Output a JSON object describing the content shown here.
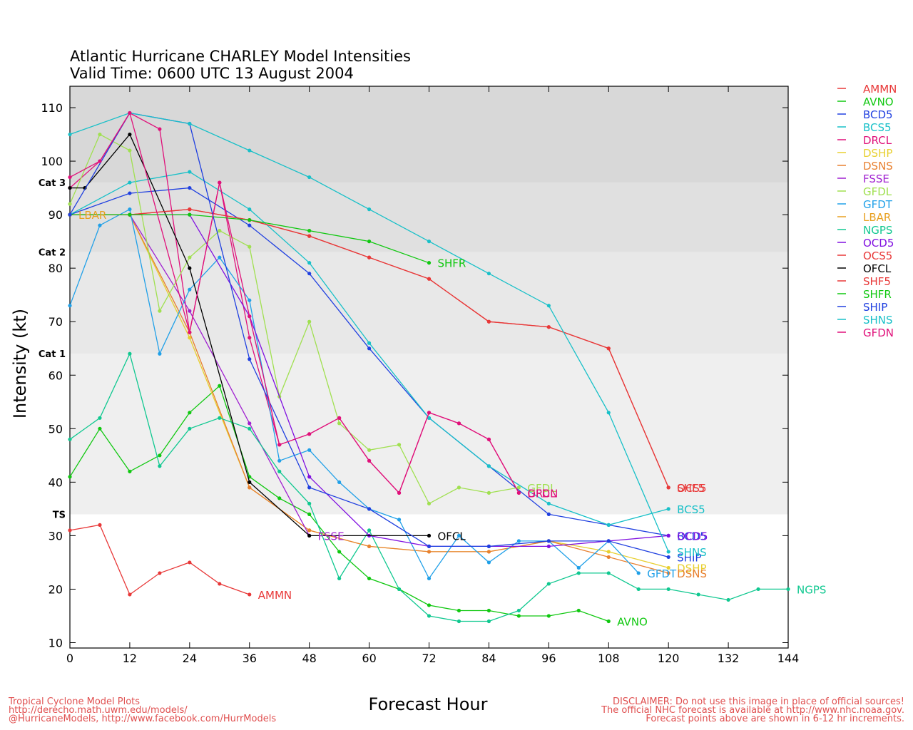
{
  "chart_data": {
    "type": "line",
    "title": "Atlantic Hurricane CHARLEY Model Intensities",
    "subtitle": "Valid Time: 0600 UTC 13 August 2004",
    "xlabel": "Forecast Hour",
    "ylabel": "Intensity (kt)",
    "xlim": [
      0,
      144
    ],
    "ylim": [
      9,
      114
    ],
    "xticks": [
      0,
      12,
      24,
      36,
      48,
      60,
      72,
      84,
      96,
      108,
      120,
      132,
      144
    ],
    "yticks": [
      10,
      20,
      30,
      40,
      50,
      60,
      70,
      80,
      90,
      100,
      110
    ],
    "category_bands": [
      {
        "name": "TS",
        "from": 34,
        "to": 64,
        "color": "#efefef"
      },
      {
        "name": "Cat 1",
        "from": 64,
        "to": 83,
        "color": "#e8e8e8"
      },
      {
        "name": "Cat 2",
        "from": 83,
        "to": 96,
        "color": "#e0e0e0"
      },
      {
        "name": "Cat 3",
        "from": 96,
        "to": 114,
        "color": "#d8d8d8"
      }
    ],
    "category_labels": [
      {
        "text": "Cat 3",
        "y": 96
      },
      {
        "text": "Cat 2",
        "y": 83
      },
      {
        "text": "Cat 1",
        "y": 64
      },
      {
        "text": "TS",
        "y": 34
      }
    ],
    "legend_position": "right",
    "series": [
      {
        "name": "AMMN",
        "color": "#e83838",
        "label": "AMMN",
        "points": [
          [
            0,
            31
          ],
          [
            6,
            32
          ],
          [
            12,
            19
          ],
          [
            18,
            23
          ],
          [
            24,
            25
          ],
          [
            30,
            21
          ],
          [
            36,
            19
          ]
        ]
      },
      {
        "name": "AVNO",
        "color": "#10c810",
        "label": "AVNO",
        "points": [
          [
            0,
            41
          ],
          [
            6,
            50
          ],
          [
            12,
            42
          ],
          [
            18,
            45
          ],
          [
            24,
            53
          ],
          [
            30,
            58
          ],
          [
            36,
            41
          ],
          [
            42,
            37
          ],
          [
            48,
            34
          ],
          [
            54,
            27
          ],
          [
            60,
            22
          ],
          [
            66,
            20
          ],
          [
            72,
            17
          ],
          [
            78,
            16
          ],
          [
            84,
            16
          ],
          [
            90,
            15
          ],
          [
            96,
            15
          ],
          [
            102,
            16
          ],
          [
            108,
            14
          ]
        ]
      },
      {
        "name": "BCD5",
        "color": "#2040e0",
        "label": "BCD5",
        "points": [
          [
            0,
            90
          ],
          [
            12,
            94
          ],
          [
            24,
            95
          ],
          [
            36,
            88
          ],
          [
            48,
            79
          ],
          [
            60,
            65
          ],
          [
            72,
            52
          ],
          [
            84,
            43
          ],
          [
            96,
            34
          ],
          [
            108,
            32
          ],
          [
            120,
            30
          ]
        ]
      },
      {
        "name": "BCS5",
        "color": "#18c0c8",
        "label": "BCS5",
        "points": [
          [
            0,
            90
          ],
          [
            12,
            96
          ],
          [
            24,
            98
          ],
          [
            36,
            91
          ],
          [
            48,
            81
          ],
          [
            60,
            66
          ],
          [
            72,
            52
          ],
          [
            84,
            43
          ],
          [
            96,
            36
          ],
          [
            108,
            32
          ],
          [
            120,
            35
          ]
        ]
      },
      {
        "name": "DRCL",
        "color": "#e0107a",
        "label": "DRCL",
        "points": [
          [
            0,
            95
          ],
          [
            6,
            100
          ],
          [
            12,
            109
          ],
          [
            18,
            106
          ],
          [
            24,
            68
          ],
          [
            30,
            96
          ],
          [
            36,
            67
          ],
          [
            42,
            47
          ],
          [
            48,
            49
          ],
          [
            54,
            52
          ],
          [
            60,
            44
          ],
          [
            66,
            38
          ],
          [
            72,
            53
          ],
          [
            78,
            51
          ],
          [
            84,
            48
          ],
          [
            90,
            38
          ]
        ]
      },
      {
        "name": "DSHP",
        "color": "#e8d030",
        "label": "DSHP",
        "points": [
          [
            0,
            90
          ],
          [
            12,
            90
          ],
          [
            24,
            67
          ],
          [
            36,
            39
          ],
          [
            48,
            31
          ],
          [
            60,
            28
          ],
          [
            72,
            27
          ],
          [
            84,
            27
          ],
          [
            96,
            29
          ],
          [
            108,
            27
          ],
          [
            120,
            24
          ]
        ]
      },
      {
        "name": "DSNS",
        "color": "#e88030",
        "label": "DSNS",
        "points": [
          [
            0,
            90
          ],
          [
            12,
            90
          ],
          [
            24,
            68
          ],
          [
            36,
            39
          ],
          [
            48,
            31
          ],
          [
            60,
            28
          ],
          [
            72,
            27
          ],
          [
            84,
            27
          ],
          [
            96,
            29
          ],
          [
            108,
            26
          ],
          [
            120,
            23
          ]
        ]
      },
      {
        "name": "FSSE",
        "color": "#a020d0",
        "label": "FSSE",
        "points": [
          [
            0,
            90
          ],
          [
            12,
            90
          ],
          [
            24,
            72
          ],
          [
            36,
            51
          ],
          [
            48,
            30
          ]
        ]
      },
      {
        "name": "GFDL",
        "color": "#a0e050",
        "label": "GFDL",
        "points": [
          [
            0,
            92
          ],
          [
            6,
            105
          ],
          [
            12,
            102
          ],
          [
            18,
            72
          ],
          [
            24,
            82
          ],
          [
            30,
            87
          ],
          [
            36,
            84
          ],
          [
            42,
            56
          ],
          [
            48,
            70
          ],
          [
            54,
            51
          ],
          [
            60,
            46
          ],
          [
            66,
            47
          ],
          [
            72,
            36
          ],
          [
            78,
            39
          ],
          [
            84,
            38
          ],
          [
            90,
            39
          ]
        ]
      },
      {
        "name": "GFDT",
        "color": "#20a0e8",
        "label": "GFDT",
        "points": [
          [
            0,
            73
          ],
          [
            6,
            88
          ],
          [
            12,
            91
          ],
          [
            18,
            64
          ],
          [
            24,
            76
          ],
          [
            30,
            82
          ],
          [
            36,
            74
          ],
          [
            42,
            44
          ],
          [
            48,
            46
          ],
          [
            54,
            40
          ],
          [
            60,
            35
          ],
          [
            66,
            33
          ],
          [
            72,
            22
          ],
          [
            78,
            30
          ],
          [
            84,
            25
          ],
          [
            90,
            29
          ],
          [
            96,
            29
          ],
          [
            102,
            24
          ],
          [
            108,
            29
          ],
          [
            114,
            23
          ]
        ]
      },
      {
        "name": "LBAR",
        "color": "#e8a020",
        "label": "LBAR",
        "points": [
          [
            0,
            90
          ]
        ]
      },
      {
        "name": "NGPS",
        "color": "#10c890",
        "label": "NGPS",
        "points": [
          [
            0,
            48
          ],
          [
            6,
            52
          ],
          [
            12,
            64
          ],
          [
            18,
            43
          ],
          [
            24,
            50
          ],
          [
            30,
            52
          ],
          [
            36,
            50
          ],
          [
            42,
            42
          ],
          [
            48,
            36
          ],
          [
            54,
            22
          ],
          [
            60,
            31
          ],
          [
            66,
            20
          ],
          [
            72,
            15
          ],
          [
            78,
            14
          ],
          [
            84,
            14
          ],
          [
            90,
            16
          ],
          [
            96,
            21
          ],
          [
            102,
            23
          ],
          [
            108,
            23
          ],
          [
            114,
            20
          ],
          [
            120,
            20
          ],
          [
            126,
            19
          ],
          [
            132,
            18
          ],
          [
            138,
            20
          ],
          [
            144,
            20
          ]
        ]
      },
      {
        "name": "OCD5",
        "color": "#8010e0",
        "label": "OCD5",
        "points": [
          [
            0,
            90
          ],
          [
            12,
            90
          ],
          [
            24,
            90
          ],
          [
            36,
            71
          ],
          [
            48,
            41
          ],
          [
            60,
            30
          ],
          [
            72,
            28
          ],
          [
            84,
            28
          ],
          [
            96,
            28
          ],
          [
            108,
            29
          ],
          [
            120,
            30
          ]
        ]
      },
      {
        "name": "OCS5",
        "color": "#e83838",
        "label": "OCS5",
        "points": [
          [
            0,
            90
          ],
          [
            12,
            90
          ],
          [
            24,
            91
          ],
          [
            36,
            89
          ],
          [
            48,
            86
          ],
          [
            60,
            82
          ],
          [
            72,
            78
          ],
          [
            84,
            70
          ],
          [
            96,
            69
          ],
          [
            108,
            65
          ],
          [
            120,
            39
          ]
        ]
      },
      {
        "name": "OFCL",
        "color": "#000000",
        "label": "OFCL",
        "points": [
          [
            0,
            95
          ],
          [
            3,
            95
          ],
          [
            12,
            105
          ],
          [
            24,
            80
          ],
          [
            36,
            40
          ],
          [
            48,
            30
          ],
          [
            72,
            30
          ]
        ]
      },
      {
        "name": "SHF5",
        "color": "#e83838",
        "label": "SHF5",
        "points": [
          [
            0,
            90
          ],
          [
            12,
            90
          ],
          [
            24,
            91
          ],
          [
            36,
            89
          ],
          [
            48,
            86
          ],
          [
            60,
            82
          ],
          [
            72,
            78
          ],
          [
            84,
            70
          ],
          [
            96,
            69
          ],
          [
            108,
            65
          ],
          [
            120,
            39
          ]
        ]
      },
      {
        "name": "SHFR",
        "color": "#10c810",
        "label": "SHFR",
        "points": [
          [
            0,
            90
          ],
          [
            12,
            90
          ],
          [
            24,
            90
          ],
          [
            36,
            89
          ],
          [
            48,
            87
          ],
          [
            60,
            85
          ],
          [
            72,
            81
          ]
        ]
      },
      {
        "name": "SHIP",
        "color": "#2040e0",
        "label": "SHIP",
        "points": [
          [
            0,
            90
          ],
          [
            12,
            109
          ],
          [
            24,
            107
          ],
          [
            36,
            63
          ],
          [
            48,
            39
          ],
          [
            60,
            35
          ],
          [
            72,
            28
          ],
          [
            84,
            28
          ],
          [
            96,
            29
          ],
          [
            108,
            29
          ],
          [
            120,
            26
          ]
        ]
      },
      {
        "name": "SHNS",
        "color": "#18c0c8",
        "label": "SHNS",
        "points": [
          [
            0,
            105
          ],
          [
            12,
            109
          ],
          [
            24,
            107
          ],
          [
            36,
            102
          ],
          [
            48,
            97
          ],
          [
            60,
            91
          ],
          [
            72,
            85
          ],
          [
            84,
            79
          ],
          [
            96,
            73
          ],
          [
            108,
            53
          ],
          [
            120,
            27
          ]
        ]
      },
      {
        "name": "GFDN",
        "color": "#e0107a",
        "label": "GFDN",
        "points": [
          [
            0,
            97
          ],
          [
            6,
            100
          ],
          [
            12,
            109
          ],
          [
            24,
            68
          ],
          [
            30,
            96
          ],
          [
            36,
            71
          ],
          [
            42,
            47
          ],
          [
            48,
            49
          ],
          [
            54,
            52
          ],
          [
            60,
            44
          ],
          [
            66,
            38
          ],
          [
            72,
            53
          ],
          [
            78,
            51
          ],
          [
            84,
            48
          ],
          [
            90,
            38
          ]
        ]
      }
    ]
  },
  "footer": {
    "left": [
      "Tropical Cyclone Model Plots",
      "http://derecho.math.uwm.edu/models/",
      "@HurricaneModels, http://www.facebook.com/HurrModels"
    ],
    "right": [
      "DISCLAIMER: Do not use this image in place of official sources!",
      "The official NHC forecast is available at http://www.nhc.noaa.gov.",
      "Forecast points above are shown in 6-12 hr increments."
    ]
  }
}
